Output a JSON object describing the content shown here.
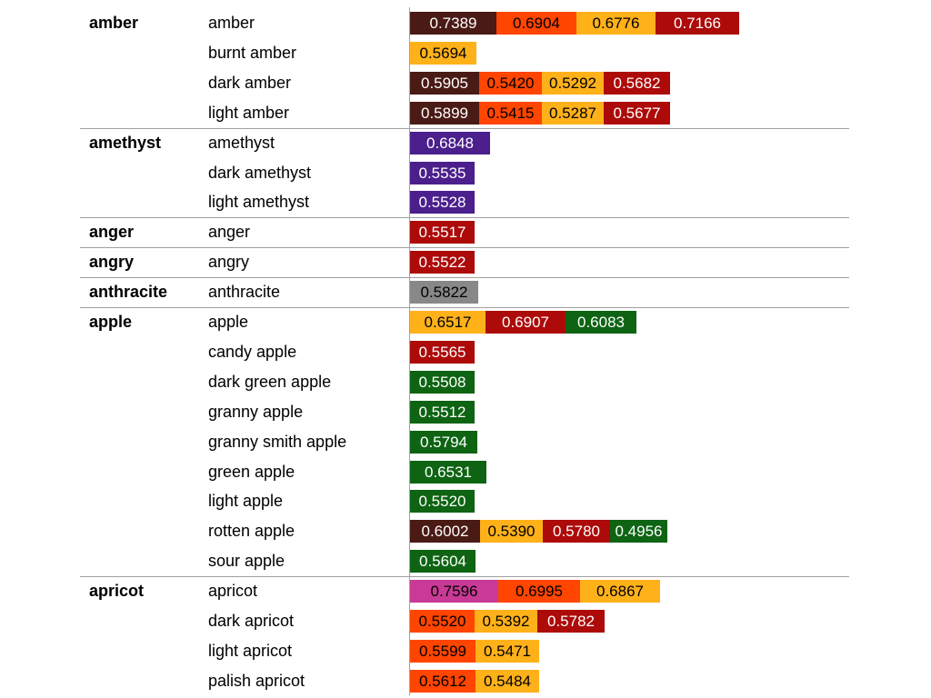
{
  "colors": {
    "brown": "#4a1a14",
    "red_orange": "#ff4500",
    "orange": "#ffb11a",
    "dark_red": "#ad0a0a",
    "purple": "#4b1f8c",
    "gray": "#888888",
    "green": "#0e6413",
    "magenta": "#c93a96"
  },
  "chart_data": {
    "type": "bar",
    "title": "",
    "xlabel": "",
    "ylabel": "",
    "groups": [
      {
        "name": "amber",
        "rows": [
          {
            "term": "amber",
            "bars": [
              {
                "value": 0.7389,
                "color": "brown"
              },
              {
                "value": 0.6904,
                "color": "red_orange"
              },
              {
                "value": 0.6776,
                "color": "orange"
              },
              {
                "value": 0.7166,
                "color": "dark_red"
              }
            ]
          },
          {
            "term": "burnt amber",
            "bars": [
              {
                "value": 0.5694,
                "color": "orange"
              }
            ]
          },
          {
            "term": "dark amber",
            "bars": [
              {
                "value": 0.5905,
                "color": "brown"
              },
              {
                "value": 0.542,
                "color": "red_orange"
              },
              {
                "value": 0.5292,
                "color": "orange"
              },
              {
                "value": 0.5682,
                "color": "dark_red"
              }
            ]
          },
          {
            "term": "light amber",
            "bars": [
              {
                "value": 0.5899,
                "color": "brown"
              },
              {
                "value": 0.5415,
                "color": "red_orange"
              },
              {
                "value": 0.5287,
                "color": "orange"
              },
              {
                "value": 0.5677,
                "color": "dark_red"
              }
            ]
          }
        ]
      },
      {
        "name": "amethyst",
        "rows": [
          {
            "term": "amethyst",
            "bars": [
              {
                "value": 0.6848,
                "color": "purple"
              }
            ]
          },
          {
            "term": "dark amethyst",
            "bars": [
              {
                "value": 0.5535,
                "color": "purple"
              }
            ]
          },
          {
            "term": "light amethyst",
            "bars": [
              {
                "value": 0.5528,
                "color": "purple"
              }
            ]
          }
        ]
      },
      {
        "name": "anger",
        "rows": [
          {
            "term": "anger",
            "bars": [
              {
                "value": 0.5517,
                "color": "dark_red"
              }
            ]
          }
        ]
      },
      {
        "name": "angry",
        "rows": [
          {
            "term": "angry",
            "bars": [
              {
                "value": 0.5522,
                "color": "dark_red"
              }
            ]
          }
        ]
      },
      {
        "name": "anthracite",
        "rows": [
          {
            "term": "anthracite",
            "bars": [
              {
                "value": 0.5822,
                "color": "gray"
              }
            ]
          }
        ]
      },
      {
        "name": "apple",
        "rows": [
          {
            "term": "apple",
            "bars": [
              {
                "value": 0.6517,
                "color": "orange"
              },
              {
                "value": 0.6907,
                "color": "dark_red"
              },
              {
                "value": 0.6083,
                "color": "green"
              }
            ]
          },
          {
            "term": "candy apple",
            "bars": [
              {
                "value": 0.5565,
                "color": "dark_red"
              }
            ]
          },
          {
            "term": "dark green apple",
            "bars": [
              {
                "value": 0.5508,
                "color": "green"
              }
            ]
          },
          {
            "term": "granny apple",
            "bars": [
              {
                "value": 0.5512,
                "color": "green"
              }
            ]
          },
          {
            "term": "granny smith apple",
            "bars": [
              {
                "value": 0.5794,
                "color": "green"
              }
            ]
          },
          {
            "term": "green apple",
            "bars": [
              {
                "value": 0.6531,
                "color": "green"
              }
            ]
          },
          {
            "term": "light apple",
            "bars": [
              {
                "value": 0.552,
                "color": "green"
              }
            ]
          },
          {
            "term": "rotten apple",
            "bars": [
              {
                "value": 0.6002,
                "color": "brown"
              },
              {
                "value": 0.539,
                "color": "orange"
              },
              {
                "value": 0.578,
                "color": "dark_red"
              },
              {
                "value": 0.4956,
                "color": "green"
              }
            ]
          },
          {
            "term": "sour apple",
            "bars": [
              {
                "value": 0.5604,
                "color": "green"
              }
            ]
          }
        ]
      },
      {
        "name": "apricot",
        "rows": [
          {
            "term": "apricot",
            "bars": [
              {
                "value": 0.7596,
                "color": "magenta"
              },
              {
                "value": 0.6995,
                "color": "red_orange"
              },
              {
                "value": 0.6867,
                "color": "orange"
              }
            ]
          },
          {
            "term": "dark apricot",
            "bars": [
              {
                "value": 0.552,
                "color": "red_orange"
              },
              {
                "value": 0.5392,
                "color": "orange"
              },
              {
                "value": 0.5782,
                "color": "dark_red"
              }
            ]
          },
          {
            "term": "light apricot",
            "bars": [
              {
                "value": 0.5599,
                "color": "red_orange"
              },
              {
                "value": 0.5471,
                "color": "orange"
              }
            ]
          },
          {
            "term": "palish apricot",
            "bars": [
              {
                "value": 0.5612,
                "color": "red_orange"
              },
              {
                "value": 0.5484,
                "color": "orange"
              }
            ]
          }
        ]
      }
    ]
  }
}
